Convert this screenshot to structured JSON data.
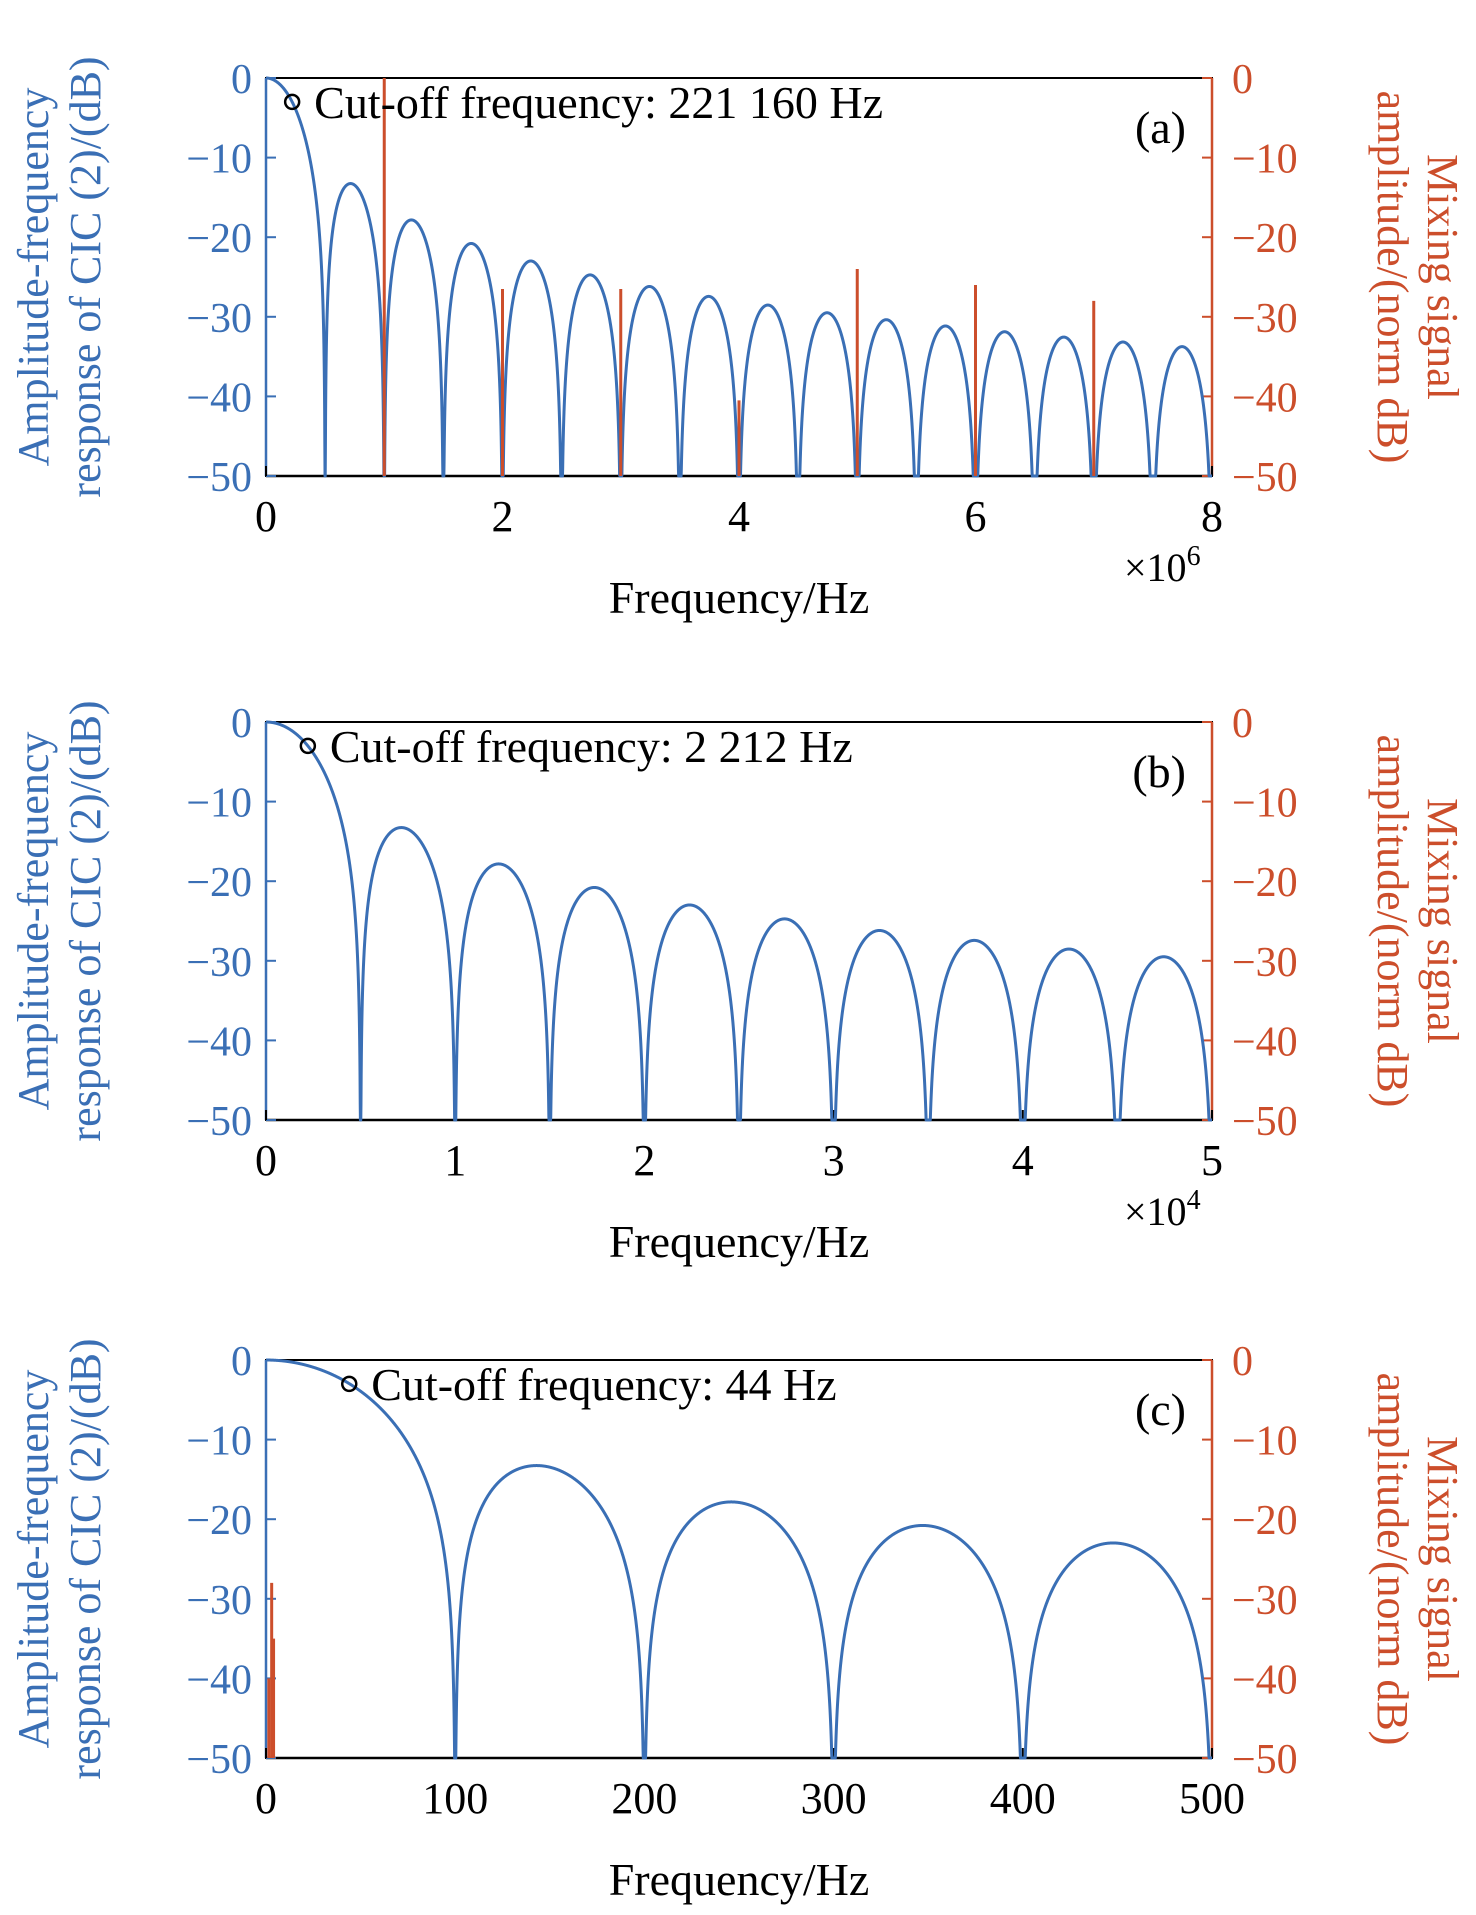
{
  "chart_data": [
    {
      "type": "line",
      "panel_label": "(a)",
      "xlabel": "Frequency/Hz",
      "ylabel_lines": [
        "Amplitude-frequency",
        "response of CIC (2)/(dB)"
      ],
      "ylabel_right_lines": [
        "Mixing signal",
        "amplitude/(norm dB)"
      ],
      "x_exponent_base": "×10",
      "x_exponent_power": "6",
      "xlim": [
        0,
        8
      ],
      "ylim": [
        -50,
        0
      ],
      "xticks": [
        0,
        2,
        4,
        6,
        8
      ],
      "xtick_labels": [
        "0",
        "2",
        "4",
        "6",
        "8"
      ],
      "yticks": [
        0,
        -10,
        -20,
        -30,
        -40,
        -50
      ],
      "ytick_labels": [
        "0",
        "−10",
        "−20",
        "−30",
        "−40",
        "−50"
      ],
      "series": [
        {
          "color": "#3a6fb5",
          "curve": "cic",
          "null_spacing": 0.5,
          "floor": -50
        },
        {
          "color": "#cc4e2b",
          "kind": "stems",
          "x": [
            1,
            2,
            3,
            4,
            5,
            6,
            7
          ],
          "y": [
            0,
            -26.5,
            -26.5,
            -40.5,
            -24,
            -26,
            -28
          ]
        }
      ],
      "marker": {
        "x": 0.22116,
        "y": -3
      },
      "annotation": "Cut-off frequency: 221 160 Hz"
    },
    {
      "type": "line",
      "panel_label": "(b)",
      "xlabel": "Frequency/Hz",
      "ylabel_lines": [
        "Amplitude-frequency",
        "response of CIC (2)/(dB)"
      ],
      "ylabel_right_lines": [
        "Mixing signal",
        "amplitude/(norm dB)"
      ],
      "x_exponent_base": "×10",
      "x_exponent_power": "4",
      "xlim": [
        0,
        5
      ],
      "ylim": [
        -50,
        0
      ],
      "xticks": [
        0,
        1,
        2,
        3,
        4,
        5
      ],
      "xtick_labels": [
        "0",
        "1",
        "2",
        "3",
        "4",
        "5"
      ],
      "yticks": [
        0,
        -10,
        -20,
        -30,
        -40,
        -50
      ],
      "ytick_labels": [
        "0",
        "−10",
        "−20",
        "−30",
        "−40",
        "−50"
      ],
      "series": [
        {
          "color": "#3a6fb5",
          "curve": "cic",
          "null_spacing": 0.5,
          "floor": -50
        }
      ],
      "marker": {
        "x": 0.2212,
        "y": -3
      },
      "annotation": "Cut-off frequency: 2 212 Hz"
    },
    {
      "type": "line",
      "panel_label": "(c)",
      "xlabel": "Frequency/Hz",
      "ylabel_lines": [
        "Amplitude-frequency",
        "response of CIC (2)/(dB)"
      ],
      "ylabel_right_lines": [
        "Mixing signal",
        "amplitude/(norm dB)"
      ],
      "x_exponent_base": "",
      "x_exponent_power": "",
      "xlim": [
        0,
        500
      ],
      "ylim": [
        -50,
        0
      ],
      "xticks": [
        0,
        100,
        200,
        300,
        400,
        500
      ],
      "xtick_labels": [
        "0",
        "100",
        "200",
        "300",
        "400",
        "500"
      ],
      "yticks": [
        0,
        -10,
        -20,
        -30,
        -40,
        -50
      ],
      "ytick_labels": [
        "0",
        "−10",
        "−20",
        "−30",
        "−40",
        "−50"
      ],
      "series": [
        {
          "color": "#3a6fb5",
          "curve": "cic",
          "null_spacing": 100,
          "floor": -50
        },
        {
          "color": "#cc4e2b",
          "kind": "stems",
          "x": [
            1.5,
            3,
            4
          ],
          "y": [
            -40,
            -28,
            -35
          ]
        }
      ],
      "marker": {
        "x": 44,
        "y": -3
      },
      "annotation": "Cut-off frequency: 44 Hz"
    }
  ],
  "colors": {
    "left_axis": "#3a6fb5",
    "right_axis": "#cc4e2b",
    "frame": "#000000"
  }
}
